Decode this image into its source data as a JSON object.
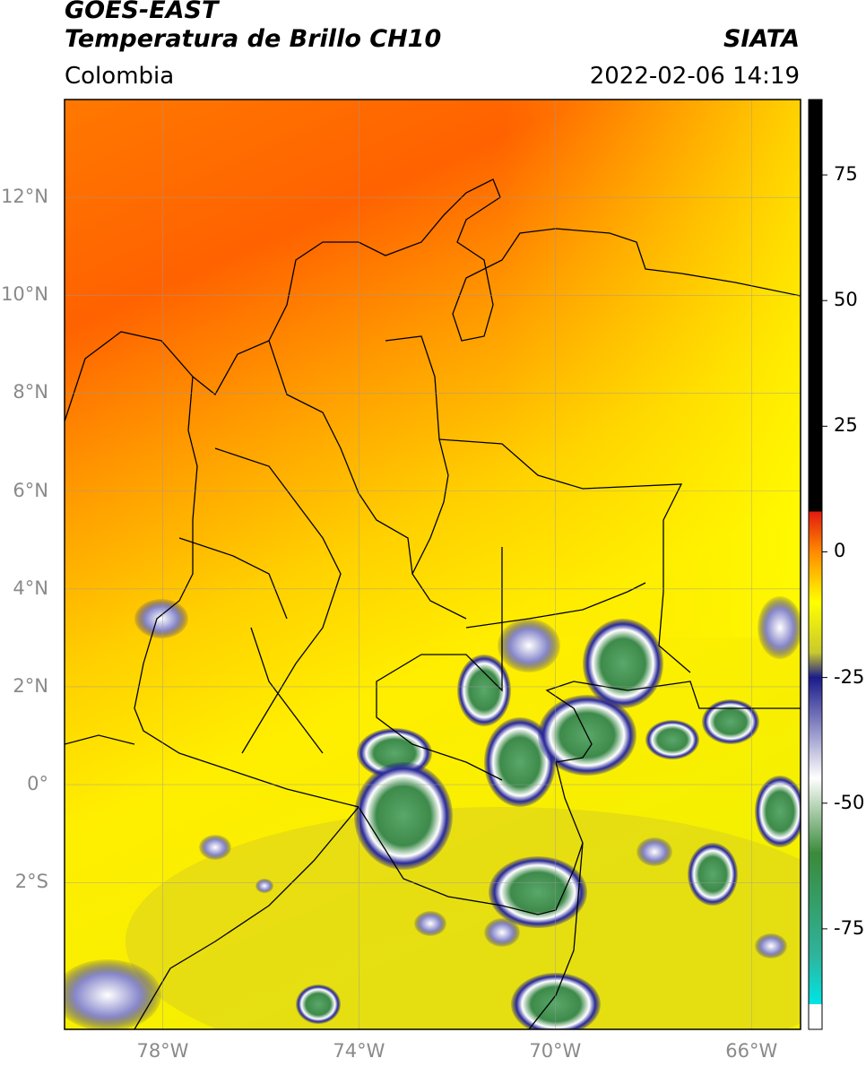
{
  "header": {
    "satellite": "GOES-EAST",
    "product": "Temperatura de Brillo CH10",
    "region": "Colombia",
    "agency": "SIATA",
    "datetime": "2022-02-06 14:19"
  },
  "map": {
    "lat_labels": [
      "12°N",
      "10°N",
      "8°N",
      "6°N",
      "4°N",
      "2°N",
      "0°",
      "2°S"
    ],
    "lat_values": [
      12,
      10,
      8,
      6,
      4,
      2,
      0,
      -2
    ],
    "lon_labels": [
      "78°W",
      "74°W",
      "70°W",
      "66°W"
    ],
    "lon_values": [
      -78,
      -74,
      -70,
      -66
    ],
    "extent": {
      "lon_min": -80,
      "lon_max": -65,
      "lat_min": -5,
      "lat_max": 14
    },
    "gridlines": true
  },
  "colorbar": {
    "ticks": [
      75,
      50,
      25,
      0,
      -25,
      -50,
      -75
    ],
    "tick_labels": [
      "75",
      "50",
      "25",
      "0",
      "-25",
      "-50",
      "-75"
    ],
    "range": [
      -95,
      90
    ],
    "stops": [
      {
        "value": 90,
        "color": "#000000"
      },
      {
        "value": 8,
        "color": "#000000"
      },
      {
        "value": 8,
        "color": "#e21a10"
      },
      {
        "value": 0,
        "color": "#ff8a00"
      },
      {
        "value": -10,
        "color": "#ffff00"
      },
      {
        "value": -20,
        "color": "#c9c92e"
      },
      {
        "value": -25,
        "color": "#1b1b8c"
      },
      {
        "value": -45,
        "color": "#ffffff"
      },
      {
        "value": -60,
        "color": "#3a8a3a"
      },
      {
        "value": -80,
        "color": "#2fb39a"
      },
      {
        "value": -90,
        "color": "#00e5e5"
      },
      {
        "value": -90,
        "color": "#ffffff"
      },
      {
        "value": -95,
        "color": "#ffffff"
      }
    ]
  },
  "colors": {
    "warm_sea": "#ff6a00",
    "mid": "#ffb000",
    "land_yellow": "#ffee00",
    "cloud_blue": "#1c1c88",
    "cloud_green": "#3d8a4a",
    "border": "#000000",
    "grid": "#9a9a9a"
  }
}
